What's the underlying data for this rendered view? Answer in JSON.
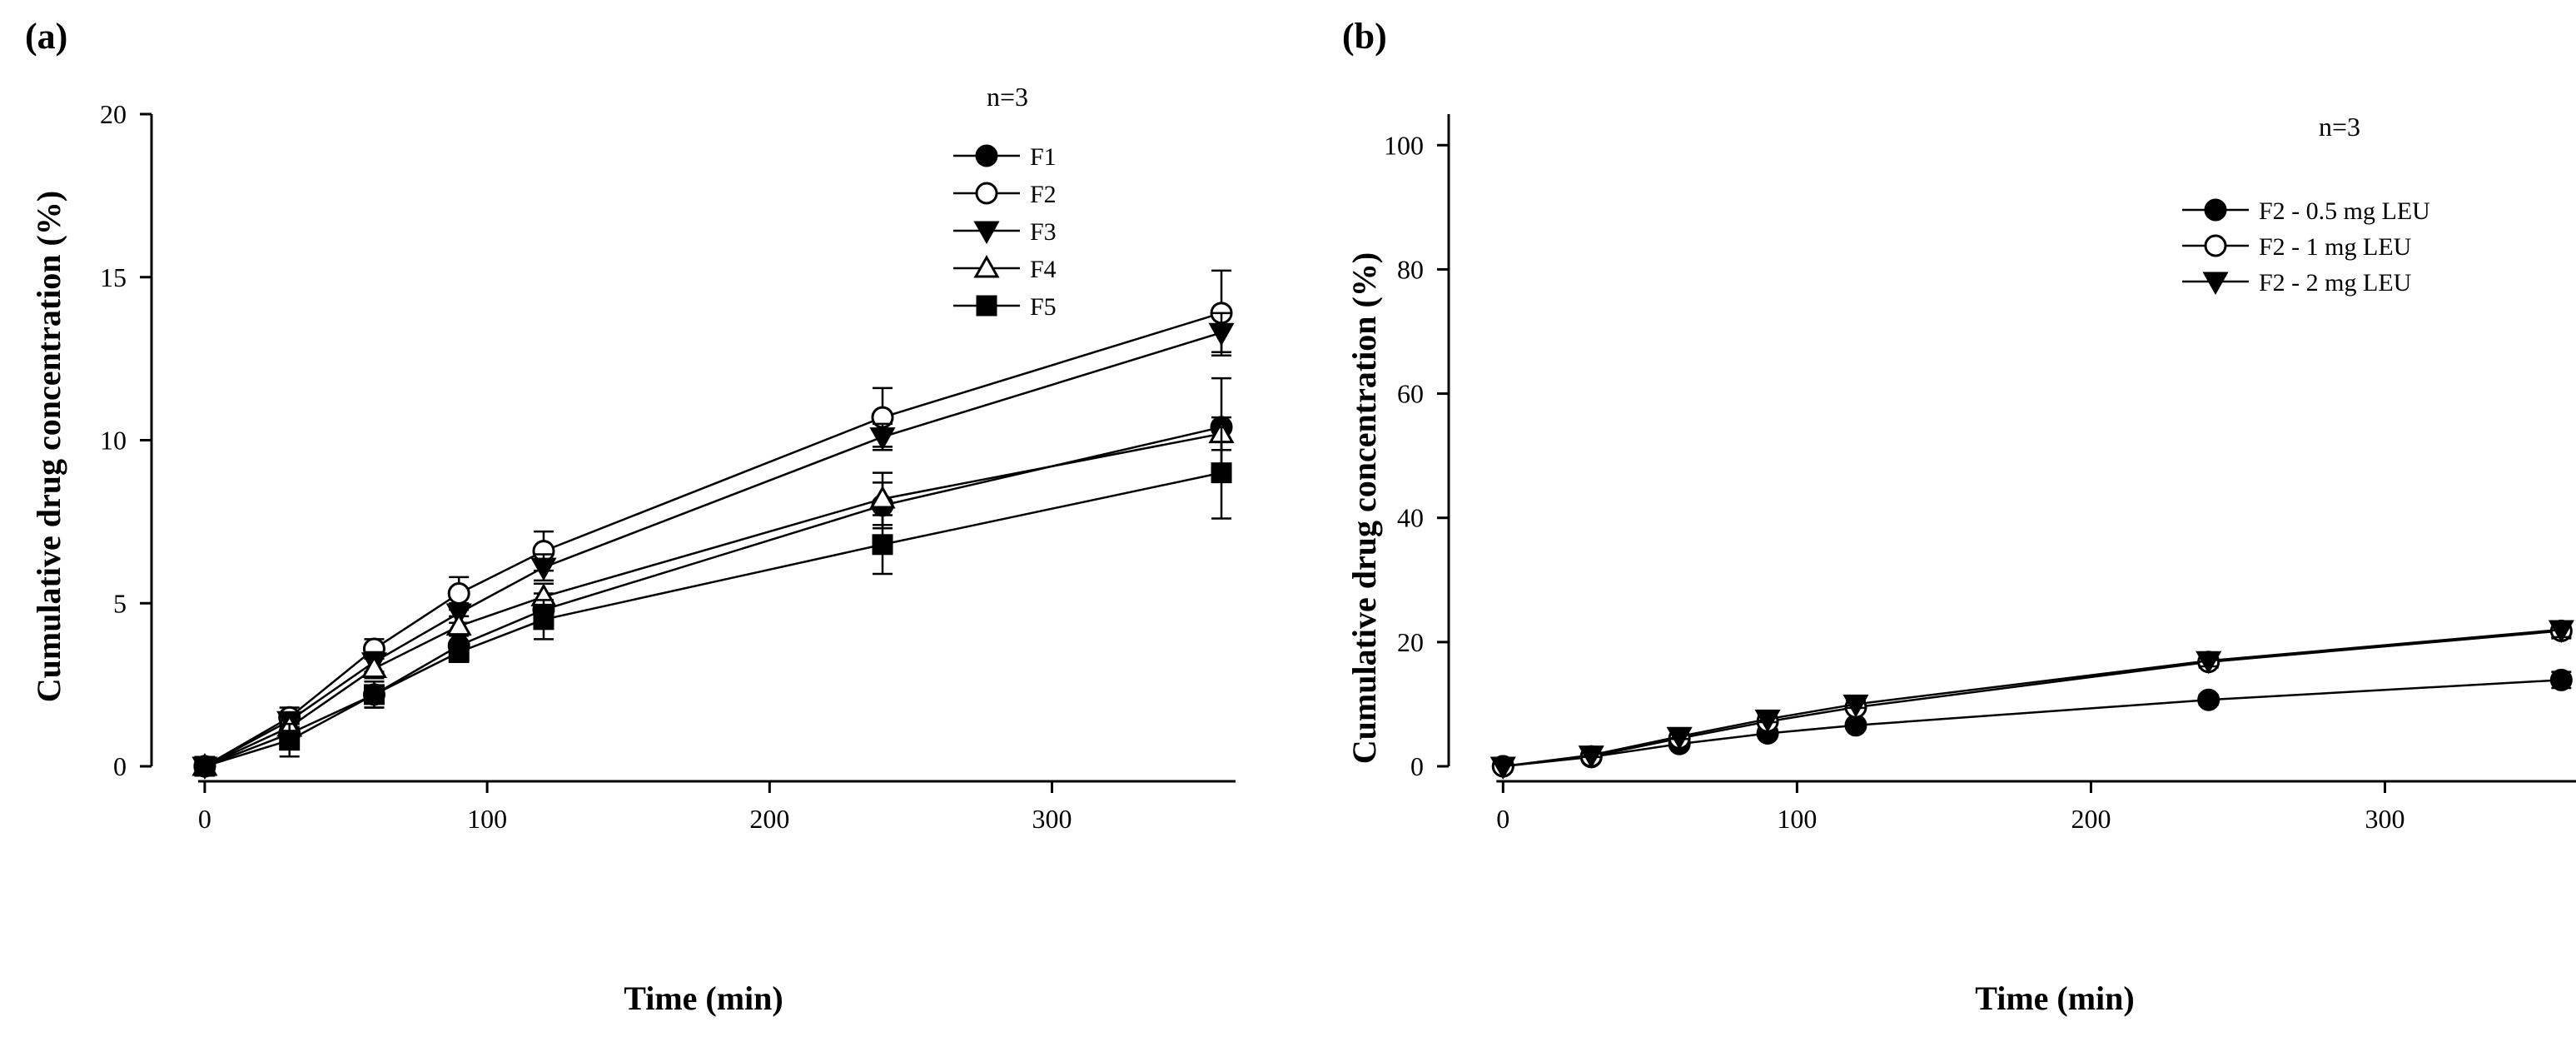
{
  "chart_data": [
    {
      "panel": "(a)",
      "type": "line",
      "annotation": "n=3",
      "xlabel": "Time (min)",
      "ylabel": "Cumulative drug concentration (%)",
      "xlim": [
        -10,
        365
      ],
      "ylim": [
        0,
        20
      ],
      "xticks": [
        0,
        100,
        200,
        300
      ],
      "yticks": [
        0,
        5,
        10,
        15,
        20
      ],
      "x": [
        0,
        30,
        60,
        90,
        120,
        240,
        360
      ],
      "legend_position": "top-right",
      "series": [
        {
          "name": "F1",
          "marker": "circle-filled",
          "values": [
            0,
            1.0,
            2.2,
            3.7,
            4.8,
            8.0,
            10.4
          ],
          "errors": [
            0,
            0.3,
            0.4,
            0.4,
            0.5,
            0.7,
            1.5
          ]
        },
        {
          "name": "F2",
          "marker": "circle-open",
          "values": [
            0,
            1.5,
            3.6,
            5.3,
            6.6,
            10.7,
            13.9
          ],
          "errors": [
            0,
            0.3,
            0.3,
            0.5,
            0.6,
            0.9,
            1.3
          ]
        },
        {
          "name": "F3",
          "marker": "triangle-down-filled",
          "values": [
            0,
            1.4,
            3.2,
            4.7,
            6.1,
            10.1,
            13.3
          ],
          "errors": [
            0,
            0.2,
            0.3,
            0.3,
            0.4,
            0.4,
            0.6
          ]
        },
        {
          "name": "F4",
          "marker": "triangle-up-open",
          "values": [
            0,
            1.2,
            3.0,
            4.3,
            5.2,
            8.2,
            10.2
          ],
          "errors": [
            0,
            0.2,
            0.3,
            0.3,
            0.4,
            0.8,
            0.5
          ]
        },
        {
          "name": "F5",
          "marker": "square-filled",
          "values": [
            0,
            0.8,
            2.2,
            3.5,
            4.5,
            6.8,
            9.0
          ],
          "errors": [
            0,
            0.5,
            0.4,
            0.3,
            0.6,
            0.9,
            1.4
          ]
        }
      ]
    },
    {
      "panel": "(b)",
      "type": "line",
      "annotation": "n=3",
      "xlabel": "Time (min)",
      "ylabel": "Cumulative drug concentration (%)",
      "xlim": [
        -10,
        365
      ],
      "ylim": [
        0,
        105
      ],
      "xticks": [
        0,
        100,
        200,
        300
      ],
      "yticks": [
        0,
        20,
        40,
        60,
        80,
        100
      ],
      "x": [
        0,
        30,
        60,
        90,
        120,
        240,
        360
      ],
      "legend_position": "top-right",
      "series": [
        {
          "name": "F2 - 0.5 mg LEU",
          "marker": "circle-filled",
          "values": [
            0,
            1.5,
            3.6,
            5.3,
            6.6,
            10.7,
            13.9
          ],
          "errors": [
            0,
            0.3,
            0.4,
            0.5,
            0.6,
            0.8,
            1.3
          ]
        },
        {
          "name": "F2 - 1 mg LEU",
          "marker": "circle-open",
          "values": [
            0,
            1.6,
            4.5,
            7.2,
            9.5,
            16.8,
            21.8
          ],
          "errors": [
            0,
            0.3,
            0.4,
            0.5,
            0.6,
            0.9,
            1.2
          ]
        },
        {
          "name": "F2 - 2 mg LEU",
          "marker": "triangle-down-filled",
          "values": [
            0,
            1.8,
            4.8,
            7.6,
            10.0,
            17.0,
            22.0
          ],
          "errors": [
            0,
            0.3,
            0.4,
            0.5,
            0.6,
            0.9,
            1.2
          ]
        }
      ]
    }
  ]
}
